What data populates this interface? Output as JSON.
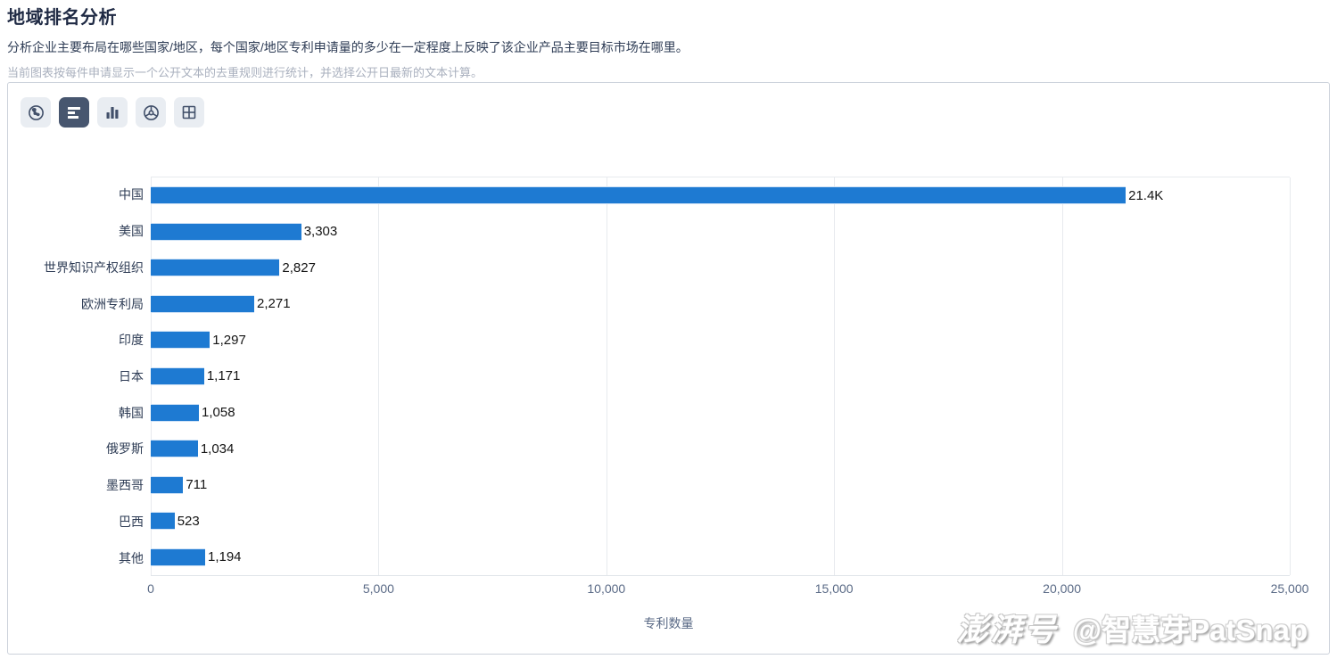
{
  "header": {
    "title": "地域排名分析",
    "description": "分析企业主要布局在哪些国家/地区，每个国家/地区专利申请量的多少在一定程度上反映了该企业产品主要目标市场在哪里。",
    "note": "当前图表按每件申请显示一个公开文本的去重规则进行统计，并选择公开日最新的文本计算。"
  },
  "toolbar": {
    "buttons": [
      {
        "icon": "globe-icon",
        "name": "map-view-button",
        "active": false
      },
      {
        "icon": "horizontal-bar-chart-icon",
        "name": "horizontal-bar-view-button",
        "active": true
      },
      {
        "icon": "column-chart-icon",
        "name": "column-view-button",
        "active": false
      },
      {
        "icon": "wheel-chart-icon",
        "name": "wheel-view-button",
        "active": false
      },
      {
        "icon": "table-grid-icon",
        "name": "table-view-button",
        "active": false
      }
    ],
    "active_bg": "#47566f",
    "inactive_bg": "#e9edf2"
  },
  "chart_data": {
    "type": "bar",
    "orientation": "horizontal",
    "title": "",
    "categories": [
      "中国",
      "美国",
      "世界知识产权组织",
      "欧洲专利局",
      "印度",
      "日本",
      "韩国",
      "俄罗斯",
      "墨西哥",
      "巴西",
      "其他"
    ],
    "values": [
      21400,
      3303,
      2827,
      2271,
      1297,
      1171,
      1058,
      1034,
      711,
      523,
      1194
    ],
    "value_labels": [
      "21.4K",
      "3,303",
      "2,827",
      "2,271",
      "1,297",
      "1,171",
      "1,058",
      "1,034",
      "711",
      "523",
      "1,194"
    ],
    "xlabel": "专利数量",
    "ylabel": "",
    "xlim": [
      0,
      25000
    ],
    "x_ticks": [
      0,
      5000,
      10000,
      15000,
      20000,
      25000
    ],
    "x_tick_labels": [
      "0",
      "5,000",
      "10,000",
      "15,000",
      "20,000",
      "25,000"
    ],
    "bar_color": "#1e7ad2",
    "grid": true,
    "legend": false
  },
  "watermark": {
    "logo": "澎湃号",
    "handle": "@智慧芽PatSnap"
  }
}
